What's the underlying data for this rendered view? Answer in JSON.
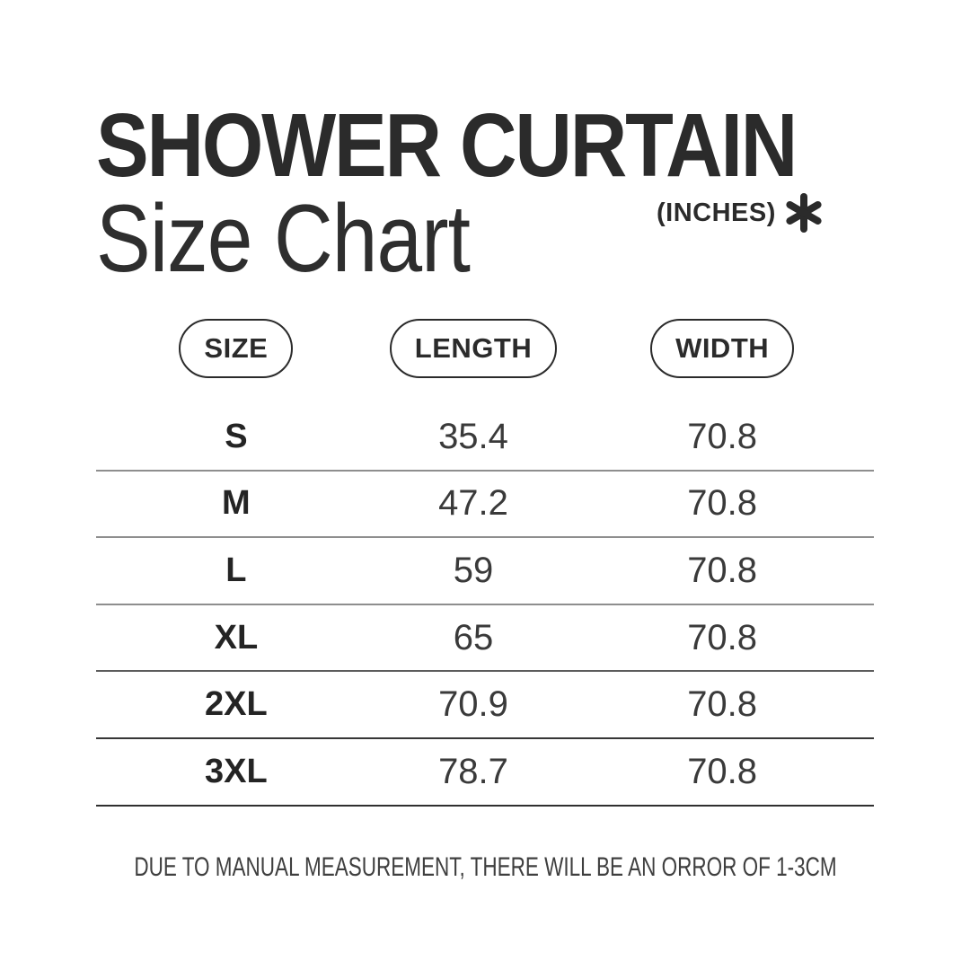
{
  "header": {
    "title": "SHOWER CURTAIN",
    "subtitle": "Size Chart",
    "unit_label": "(INCHES)",
    "asterisk_icon": "heavy-six-spoke-asterisk"
  },
  "table": {
    "columns": [
      "SIZE",
      "LENGTH",
      "WIDTH"
    ],
    "rows": [
      {
        "size": "S",
        "length": "35.4",
        "width": "70.8"
      },
      {
        "size": "M",
        "length": "47.2",
        "width": "70.8"
      },
      {
        "size": "L",
        "length": "59",
        "width": "70.8"
      },
      {
        "size": "XL",
        "length": "65",
        "width": "70.8"
      },
      {
        "size": "2XL",
        "length": "70.9",
        "width": "70.8"
      },
      {
        "size": "3XL",
        "length": "78.7",
        "width": "70.8"
      }
    ]
  },
  "footer": {
    "note": "DUE TO MANUAL MEASUREMENT, THERE WILL BE AN ORROR OF 1-3CM"
  },
  "colors": {
    "background": "#ffffff",
    "ink": "#2b2b2b",
    "value_text": "#3a3a3a",
    "separator_light": "#8e8e8e",
    "separator_dark": "#2f2f2f"
  },
  "chart_data": {
    "type": "table",
    "title": "SHOWER CURTAIN Size Chart",
    "unit": "INCHES",
    "columns": [
      "SIZE",
      "LENGTH",
      "WIDTH"
    ],
    "rows": [
      [
        "S",
        35.4,
        70.8
      ],
      [
        "M",
        47.2,
        70.8
      ],
      [
        "L",
        59,
        70.8
      ],
      [
        "XL",
        65,
        70.8
      ],
      [
        "2XL",
        70.9,
        70.8
      ],
      [
        "3XL",
        78.7,
        70.8
      ]
    ],
    "note": "DUE TO MANUAL MEASUREMENT, THERE WILL BE AN ORROR OF 1-3CM"
  }
}
